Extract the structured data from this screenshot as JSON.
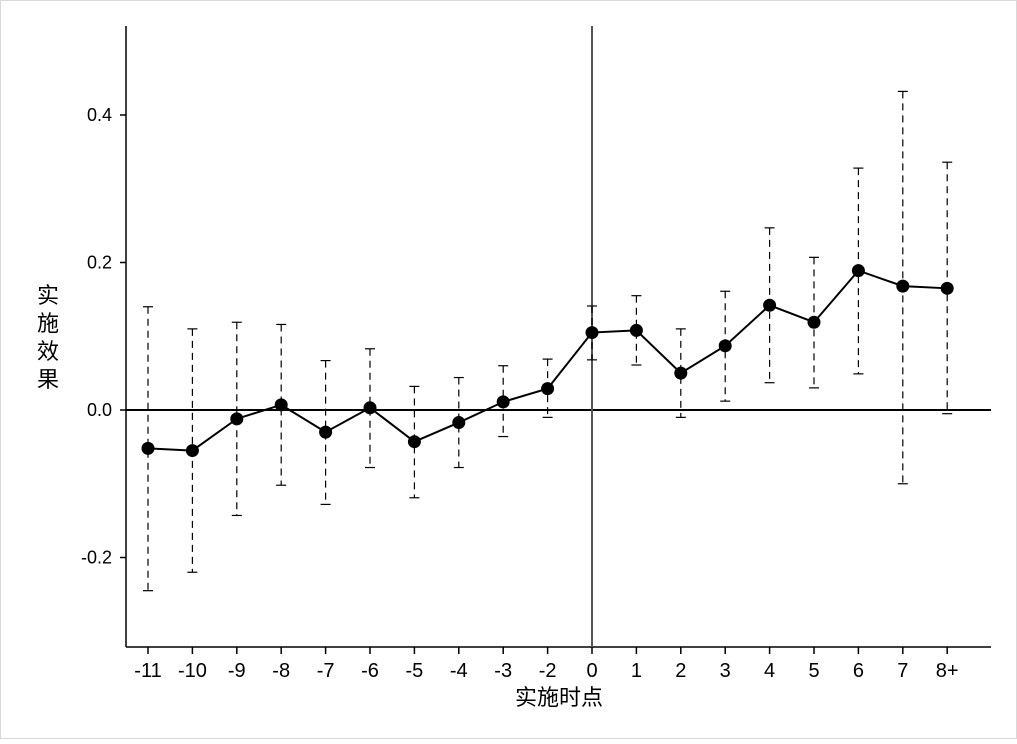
{
  "chart_data": {
    "type": "line",
    "title": "",
    "xlabel": "实施时点",
    "ylabel": "实施效果",
    "x": [
      "-11",
      "-10",
      "-9",
      "-8",
      "-7",
      "-6",
      "-5",
      "-4",
      "-3",
      "-2",
      "0",
      "1",
      "2",
      "3",
      "4",
      "5",
      "6",
      "7",
      "8+"
    ],
    "series": [
      {
        "values": [
          -0.052,
          -0.055,
          -0.012,
          0.007,
          -0.03,
          0.003,
          -0.043,
          -0.017,
          0.011,
          0.029,
          0.105,
          0.108,
          0.05,
          0.087,
          0.142,
          0.119,
          0.189,
          0.168,
          0.165
        ],
        "ci_lower": [
          -0.245,
          -0.22,
          -0.143,
          -0.102,
          -0.128,
          -0.078,
          -0.119,
          -0.078,
          -0.036,
          -0.01,
          0.068,
          0.061,
          -0.01,
          0.012,
          0.037,
          0.03,
          0.049,
          -0.1,
          -0.005
        ],
        "ci_upper": [
          0.14,
          0.11,
          0.119,
          0.116,
          0.067,
          0.083,
          0.032,
          0.044,
          0.06,
          0.069,
          0.141,
          0.155,
          0.11,
          0.161,
          0.247,
          0.207,
          0.328,
          0.432,
          0.336
        ]
      }
    ],
    "yticks": [
      -0.2,
      0.0,
      0.2,
      0.4
    ],
    "ytick_labels": [
      "-0.2",
      "0.0",
      "0.2",
      "0.4"
    ],
    "ylim": [
      -0.32,
      0.52
    ],
    "reference_line_y": 0,
    "reference_line_x": "0",
    "grid": false,
    "legend": "none",
    "colors": {
      "line": "#000000",
      "marker": "#000000",
      "ci": "#000000",
      "vline": "#555555"
    }
  }
}
